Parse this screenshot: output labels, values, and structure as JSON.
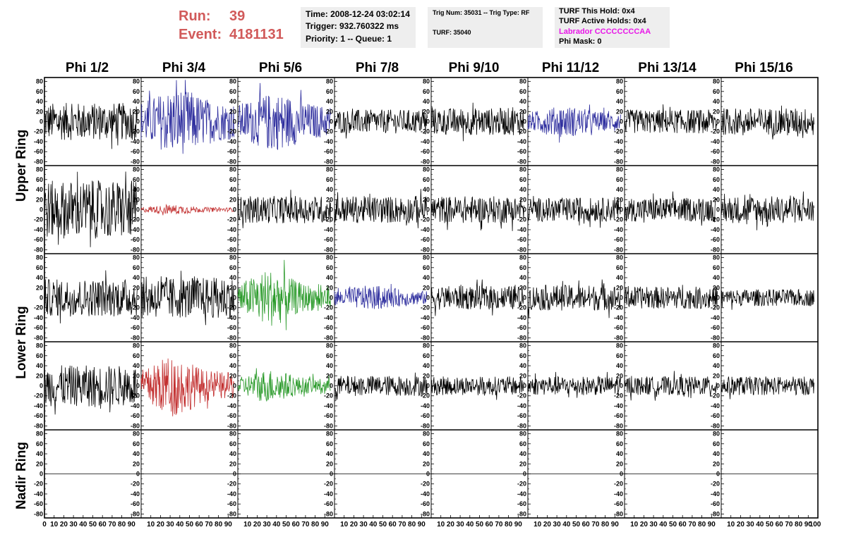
{
  "header": {
    "run_label": "Run:",
    "run_value": "39",
    "event_label": "Event:",
    "event_value": "4181131"
  },
  "time_box": {
    "time": "Time: 2008-12-24 03:02:14",
    "trigger": "Trigger: 932.760322 ms",
    "priority": "Priority: 1 -- Queue: 1"
  },
  "trig_box": {
    "trig": "Trig Num: 35031 -- Trig Type: RF",
    "turf": "TURF: 35040"
  },
  "turf_box": {
    "this_hold": "TURF This Hold: 0x4",
    "active_holds": "TURF Active Holds: 0x4",
    "labrador": "Labrador CCCCCCCCAA",
    "phi_mask": "Phi Mask: 0",
    "labrador_color": "#e817e8"
  },
  "colors": {
    "header_red": "#d15a5a",
    "black": "#000000",
    "blue": "#2e2e9e",
    "red": "#c22e2e",
    "green": "#2a9a2a"
  },
  "chart_data": {
    "type": "line",
    "columns": [
      "Phi 1/2",
      "Phi 3/4",
      "Phi 5/6",
      "Phi 7/8",
      "Phi 9/10",
      "Phi 11/12",
      "Phi 13/14",
      "Phi 15/16"
    ],
    "ring_labels": [
      "Upper Ring",
      "Lower Ring",
      "Nadir Ring"
    ],
    "ylim": [
      -85,
      85
    ],
    "xlim": [
      0,
      100
    ],
    "y_ticks": [
      "80",
      "60",
      "40",
      "20",
      "0",
      "-20",
      "-40",
      "-60",
      "-80"
    ],
    "y_tick_values": [
      80,
      60,
      40,
      20,
      0,
      -20,
      -40,
      -60,
      -80
    ],
    "x_tick_labels_first": [
      "0",
      "10",
      "20",
      "30",
      "40",
      "50",
      "60",
      "70",
      "80",
      "90"
    ],
    "x_tick_labels": [
      "10",
      "20",
      "30",
      "40",
      "50",
      "60",
      "70",
      "80",
      "90"
    ],
    "x_tick_label_last": "100",
    "x_tick_values": [
      0,
      10,
      20,
      30,
      40,
      50,
      60,
      70,
      80,
      90,
      100
    ],
    "rows": [
      {
        "ring": "Upper Ring",
        "panels": [
          {
            "color": "black",
            "amplitude": 22
          },
          {
            "color": "blue",
            "amplitude": 30
          },
          {
            "color": "blue",
            "amplitude": 26
          },
          {
            "color": "black",
            "amplitude": 14
          },
          {
            "color": "black",
            "amplitude": 16
          },
          {
            "color": "blue",
            "amplitude": 14
          },
          {
            "color": "black",
            "amplitude": 14
          },
          {
            "color": "black",
            "amplitude": 16
          }
        ]
      },
      {
        "ring": "Upper Ring",
        "panels": [
          {
            "color": "black",
            "amplitude": 34
          },
          {
            "color": "red",
            "amplitude": 4
          },
          {
            "color": "black",
            "amplitude": 16
          },
          {
            "color": "black",
            "amplitude": 16
          },
          {
            "color": "black",
            "amplitude": 16
          },
          {
            "color": "black",
            "amplitude": 14
          },
          {
            "color": "black",
            "amplitude": 14
          },
          {
            "color": "black",
            "amplitude": 16
          }
        ]
      },
      {
        "ring": "Lower Ring",
        "panels": [
          {
            "color": "black",
            "amplitude": 22
          },
          {
            "color": "black",
            "amplitude": 24
          },
          {
            "color": "green",
            "amplitude": 24
          },
          {
            "color": "blue",
            "amplitude": 11
          },
          {
            "color": "black",
            "amplitude": 14
          },
          {
            "color": "black",
            "amplitude": 15
          },
          {
            "color": "black",
            "amplitude": 13
          },
          {
            "color": "black",
            "amplitude": 10
          }
        ]
      },
      {
        "ring": "Lower Ring",
        "panels": [
          {
            "color": "black",
            "amplitude": 24
          },
          {
            "color": "red",
            "amplitude": 26
          },
          {
            "color": "green",
            "amplitude": 14
          },
          {
            "color": "black",
            "amplitude": 12
          },
          {
            "color": "black",
            "amplitude": 11
          },
          {
            "color": "black",
            "amplitude": 11
          },
          {
            "color": "black",
            "amplitude": 11
          },
          {
            "color": "black",
            "amplitude": 11
          }
        ]
      },
      {
        "ring": "Nadir Ring",
        "panels": [
          {
            "color": "black",
            "amplitude": 0
          },
          {
            "color": "black",
            "amplitude": 0
          },
          {
            "color": "black",
            "amplitude": 0
          },
          {
            "color": "black",
            "amplitude": 0
          },
          {
            "color": "black",
            "amplitude": 0
          },
          {
            "color": "black",
            "amplitude": 0
          },
          {
            "color": "black",
            "amplitude": 0
          },
          {
            "color": "black",
            "amplitude": 0
          }
        ]
      }
    ]
  }
}
